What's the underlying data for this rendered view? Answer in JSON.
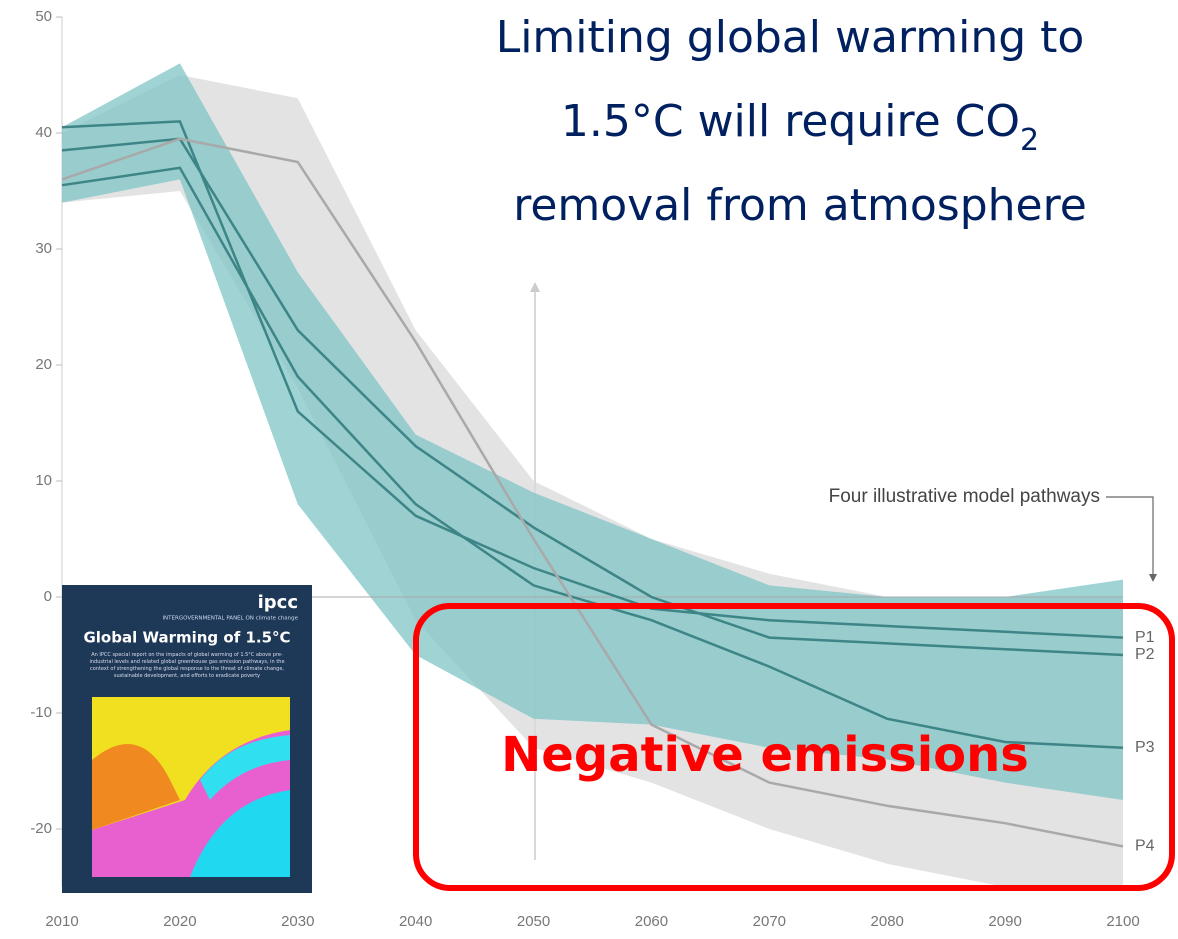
{
  "chart_data": {
    "type": "line",
    "title_lines": [
      "Limiting global warming to",
      "1.5°C will require CO",
      "2",
      "removal from atmosphere"
    ],
    "x": [
      2010,
      2020,
      2030,
      2040,
      2050,
      2060,
      2070,
      2080,
      2090,
      2100
    ],
    "xlim": [
      2010,
      2100
    ],
    "xticks": [
      2010,
      2020,
      2030,
      2040,
      2050,
      2060,
      2070,
      2080,
      2090,
      2100
    ],
    "ylim": [
      -25,
      50
    ],
    "yticks": [
      -20,
      -10,
      0,
      10,
      20,
      30,
      40,
      50
    ],
    "series": [
      {
        "name": "P1",
        "color": "#3d8587",
        "values": [
          40.5,
          41,
          16,
          7,
          2.5,
          -1,
          -2,
          -2.5,
          -3,
          -3.5
        ]
      },
      {
        "name": "P2",
        "color": "#3d8587",
        "values": [
          38.5,
          39.5,
          23,
          13,
          6,
          0,
          -3.5,
          -4,
          -4.5,
          -5
        ]
      },
      {
        "name": "P3",
        "color": "#3d8587",
        "values": [
          35.5,
          37,
          19,
          8,
          1,
          -2,
          -6,
          -10.5,
          -12.5,
          -13
        ]
      },
      {
        "name": "P4",
        "color": "#a9a9a9",
        "values": [
          36,
          39.5,
          37.5,
          22,
          5,
          -11,
          -16,
          -18,
          -19.5,
          -21.5
        ]
      }
    ],
    "bands": [
      {
        "color": "#d9d9d9",
        "upper": [
          40,
          45,
          43,
          23,
          10,
          5,
          2,
          0,
          0,
          0
        ],
        "lower": [
          34,
          35,
          18,
          -2,
          -13,
          -16,
          -20,
          -23,
          -25,
          -25
        ]
      },
      {
        "color": "#7fc4c6",
        "upper": [
          40.5,
          46,
          28,
          14,
          9,
          5,
          1,
          0,
          0,
          1.5
        ],
        "lower": [
          34,
          36,
          8,
          -5,
          -10.5,
          -11,
          -13,
          -14,
          -16,
          -17.5
        ]
      }
    ],
    "annotations": [
      "Four illustrative model pathways",
      "Negative emissions"
    ],
    "cover": {
      "logo": "ipcc",
      "org": "INTERGOVERNMENTAL PANEL ON climate change",
      "title": "Global Warming of 1.5°C",
      "description": "An IPCC special report on the impacts of global warming of 1.5°C above pre-industrial levels and related global greenhouse gas emission pathways, in the context of strengthening the global response to the threat of climate change, sustainable development, and efforts to eradicate poverty"
    }
  }
}
